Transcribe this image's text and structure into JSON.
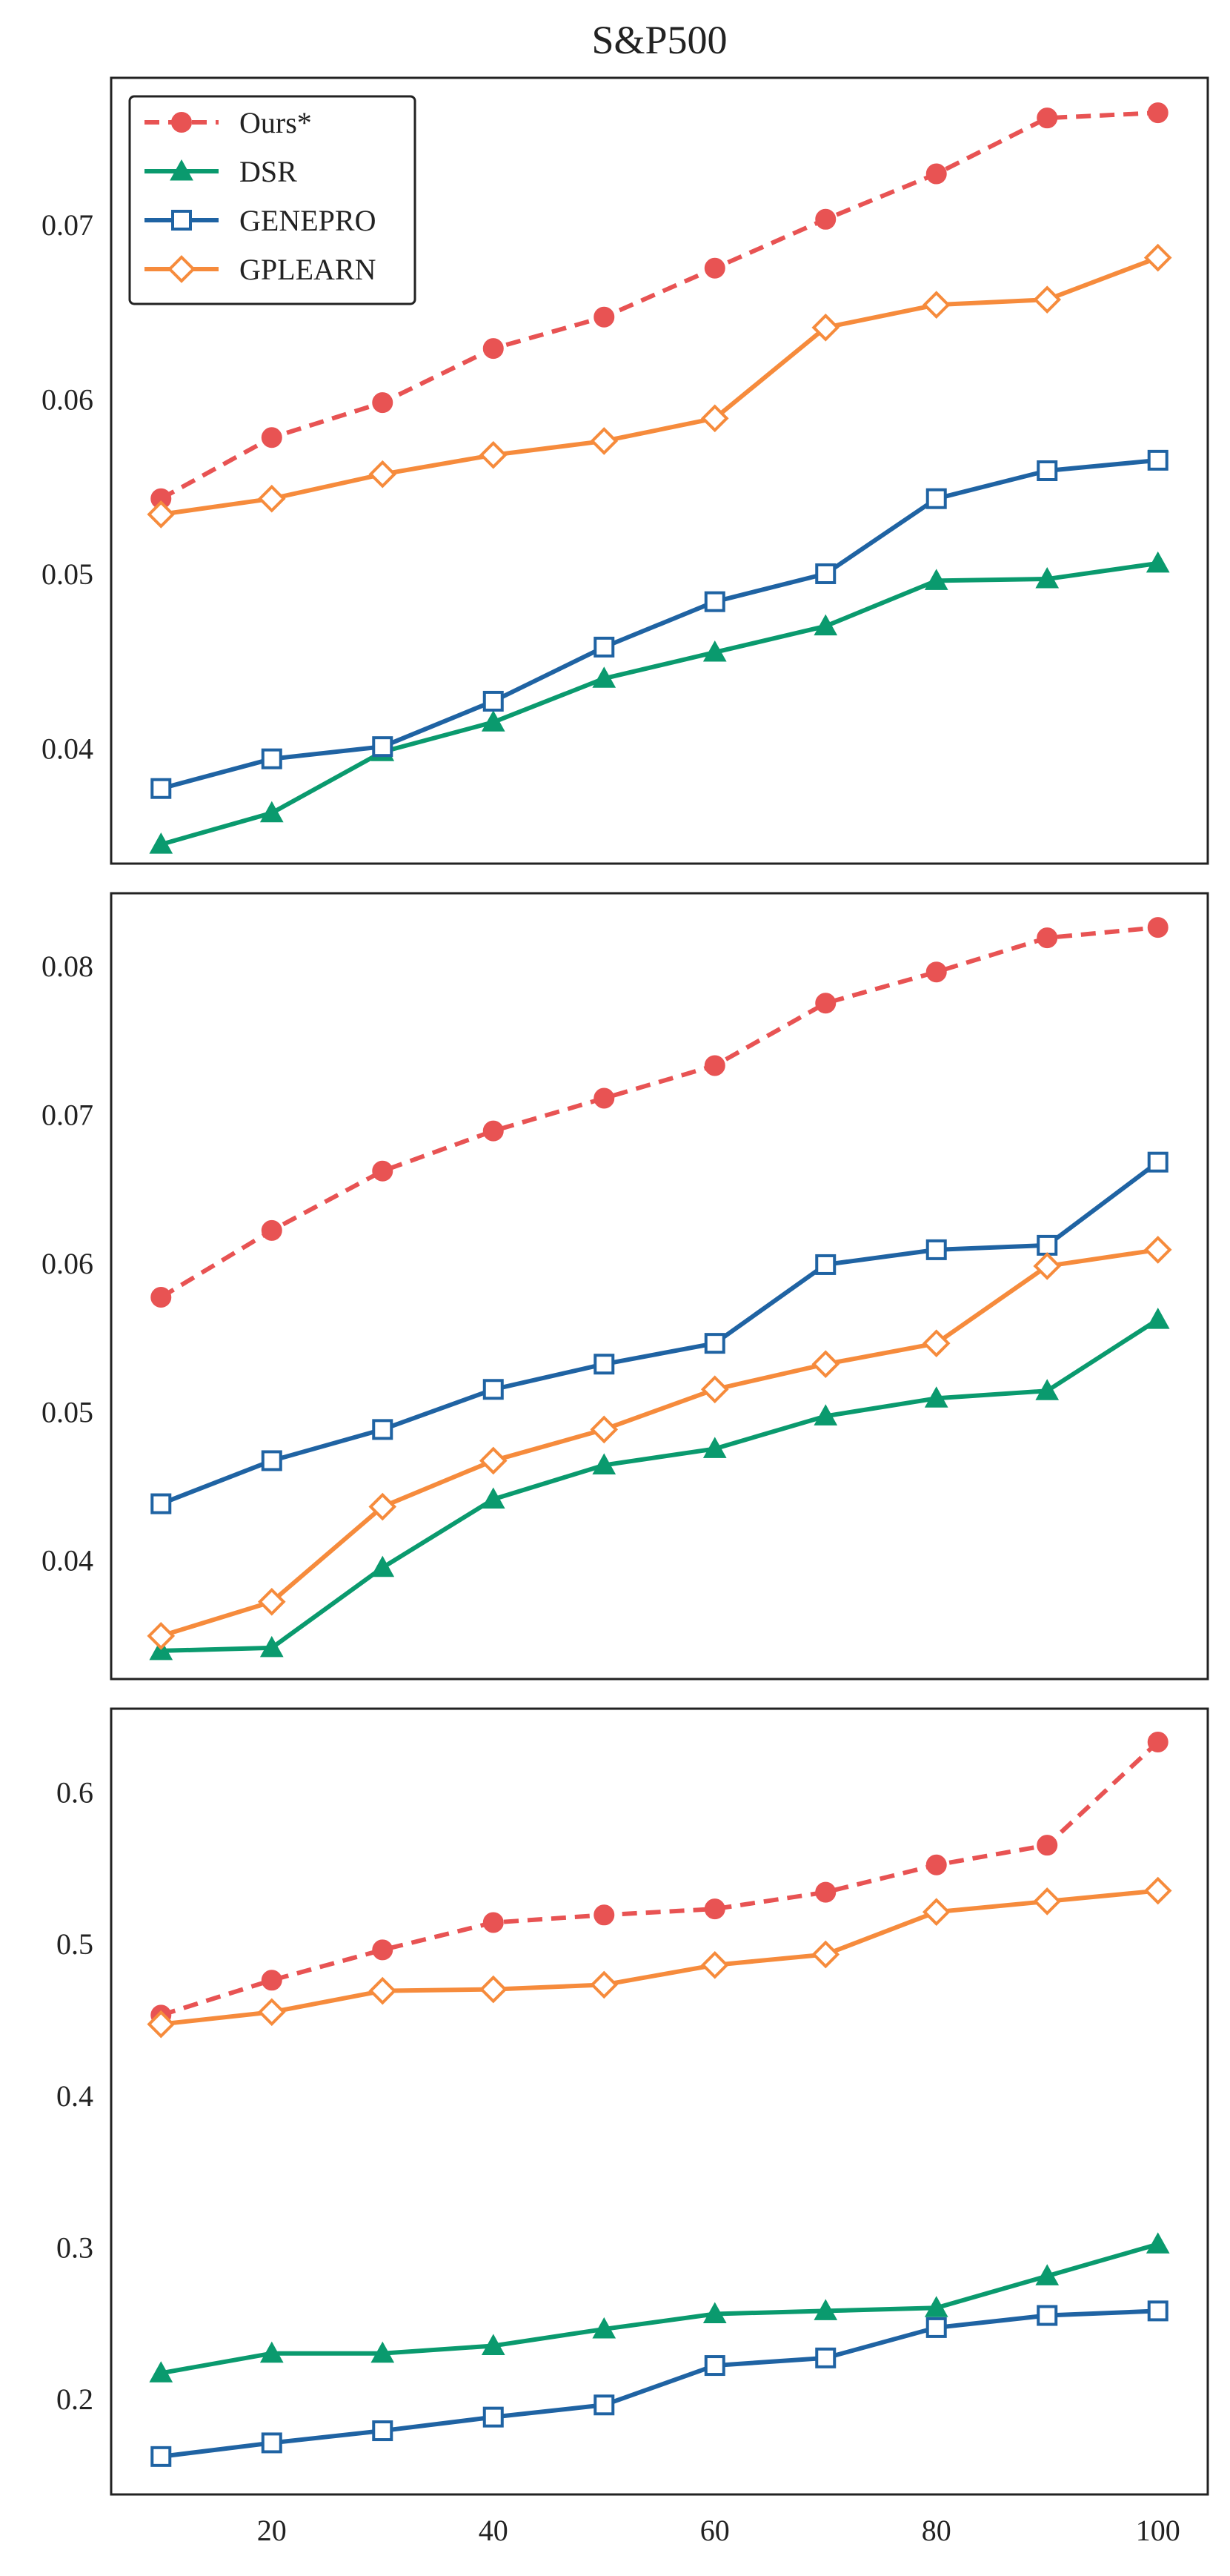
{
  "chart_data": {
    "title": "S&P500",
    "type": "line",
    "x": [
      10,
      20,
      30,
      40,
      50,
      60,
      70,
      80,
      90,
      100
    ],
    "legend": {
      "placement": "top-left",
      "entries": [
        "Ours*",
        "DSR",
        "GENEPRO",
        "GPLEARN"
      ]
    },
    "series_styles": [
      {
        "name": "Ours*",
        "color": "#e85353",
        "marker": "circle",
        "dashed": true
      },
      {
        "name": "DSR",
        "color": "#0a9a6e",
        "marker": "triangle",
        "dashed": false
      },
      {
        "name": "GENEPRO",
        "color": "#1f63a3",
        "marker": "square",
        "dashed": false
      },
      {
        "name": "GPLEARN",
        "color": "#f68b3c",
        "marker": "diamond",
        "dashed": false
      }
    ],
    "panels": [
      {
        "ylim": [
          0.0334,
          0.0784
        ],
        "yticks": [
          0.04,
          0.05,
          0.06,
          0.07
        ],
        "ytick_labels": [
          "0.04",
          "0.05",
          "0.06",
          "0.07"
        ],
        "show_legend": true,
        "series": [
          {
            "name": "Ours*",
            "values": [
              0.0543,
              0.0578,
              0.0598,
              0.0629,
              0.0647,
              0.0675,
              0.0703,
              0.0729,
              0.0761,
              0.0764
            ]
          },
          {
            "name": "DSR",
            "values": [
              0.0345,
              0.0363,
              0.0398,
              0.0415,
              0.044,
              0.0455,
              0.047,
              0.0496,
              0.0497,
              0.0506
            ]
          },
          {
            "name": "GENEPRO",
            "values": [
              0.0377,
              0.0394,
              0.0401,
              0.0427,
              0.0458,
              0.0484,
              0.05,
              0.0543,
              0.0559,
              0.0565
            ]
          },
          {
            "name": "GPLEARN",
            "values": [
              0.0534,
              0.0543,
              0.0557,
              0.0568,
              0.0576,
              0.0589,
              0.0641,
              0.0654,
              0.0657,
              0.0681
            ]
          }
        ]
      },
      {
        "ylim": [
          0.032,
          0.0849
        ],
        "yticks": [
          0.04,
          0.05,
          0.06,
          0.07,
          0.08
        ],
        "ytick_labels": [
          "0.04",
          "0.05",
          "0.06",
          "0.07",
          "0.08"
        ],
        "show_legend": false,
        "series": [
          {
            "name": "Ours*",
            "values": [
              0.0577,
              0.0622,
              0.0662,
              0.0689,
              0.0711,
              0.0733,
              0.0775,
              0.0796,
              0.0819,
              0.0826
            ]
          },
          {
            "name": "DSR",
            "values": [
              0.0339,
              0.0341,
              0.0395,
              0.0441,
              0.0464,
              0.0475,
              0.0497,
              0.0509,
              0.0514,
              0.0562
            ]
          },
          {
            "name": "GENEPRO",
            "values": [
              0.0438,
              0.0467,
              0.0488,
              0.0515,
              0.0532,
              0.0546,
              0.0599,
              0.0609,
              0.0612,
              0.0668
            ]
          },
          {
            "name": "GPLEARN",
            "values": [
              0.0349,
              0.0372,
              0.0436,
              0.0467,
              0.0488,
              0.0515,
              0.0532,
              0.0546,
              0.0598,
              0.0609
            ]
          }
        ]
      },
      {
        "ylim": [
          0.137,
          0.655
        ],
        "yticks": [
          0.2,
          0.3,
          0.4,
          0.5,
          0.6
        ],
        "ytick_labels": [
          "0.2",
          "0.3",
          "0.4",
          "0.5",
          "0.6"
        ],
        "show_legend": false,
        "series": [
          {
            "name": "Ours*",
            "values": [
              0.453,
              0.476,
              0.496,
              0.514,
              0.519,
              0.523,
              0.534,
              0.552,
              0.565,
              0.633
            ]
          },
          {
            "name": "DSR",
            "values": [
              0.217,
              0.23,
              0.23,
              0.235,
              0.246,
              0.256,
              0.258,
              0.26,
              0.281,
              0.302
            ]
          },
          {
            "name": "GENEPRO",
            "values": [
              0.162,
              0.171,
              0.179,
              0.188,
              0.196,
              0.222,
              0.227,
              0.247,
              0.255,
              0.258
            ]
          },
          {
            "name": "GPLEARN",
            "values": [
              0.447,
              0.455,
              0.469,
              0.47,
              0.473,
              0.486,
              0.493,
              0.521,
              0.528,
              0.535
            ]
          }
        ]
      }
    ],
    "xlim": [
      5.5,
      104.5
    ],
    "xticks": [
      20,
      40,
      60,
      80,
      100
    ],
    "xtick_labels": [
      "20",
      "40",
      "60",
      "80",
      "100"
    ],
    "xlabel": "",
    "ylabel": ""
  }
}
